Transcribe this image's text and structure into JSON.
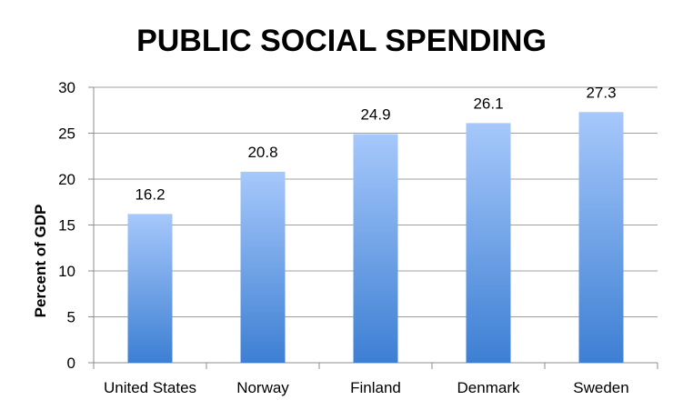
{
  "chart_data": {
    "type": "bar",
    "title": "PUBLIC SOCIAL SPENDING",
    "xlabel": "",
    "ylabel": "Percent of GDP",
    "categories": [
      "United States",
      "Norway",
      "Finland",
      "Denmark",
      "Sweden"
    ],
    "values": [
      16.2,
      20.8,
      24.9,
      26.1,
      27.3
    ],
    "data_labels": [
      "16.2",
      "20.8",
      "24.9",
      "26.1",
      "27.3"
    ],
    "ylim": [
      0,
      30
    ],
    "yticks": [
      0,
      5,
      10,
      15,
      20,
      25,
      30
    ],
    "grid": true,
    "legend": "none",
    "colors": {
      "bar_top": "#a6c8fb",
      "bar_bottom": "#3d7fd3",
      "grid": "#a0a0a0",
      "axis": "#8c8c8c"
    }
  }
}
